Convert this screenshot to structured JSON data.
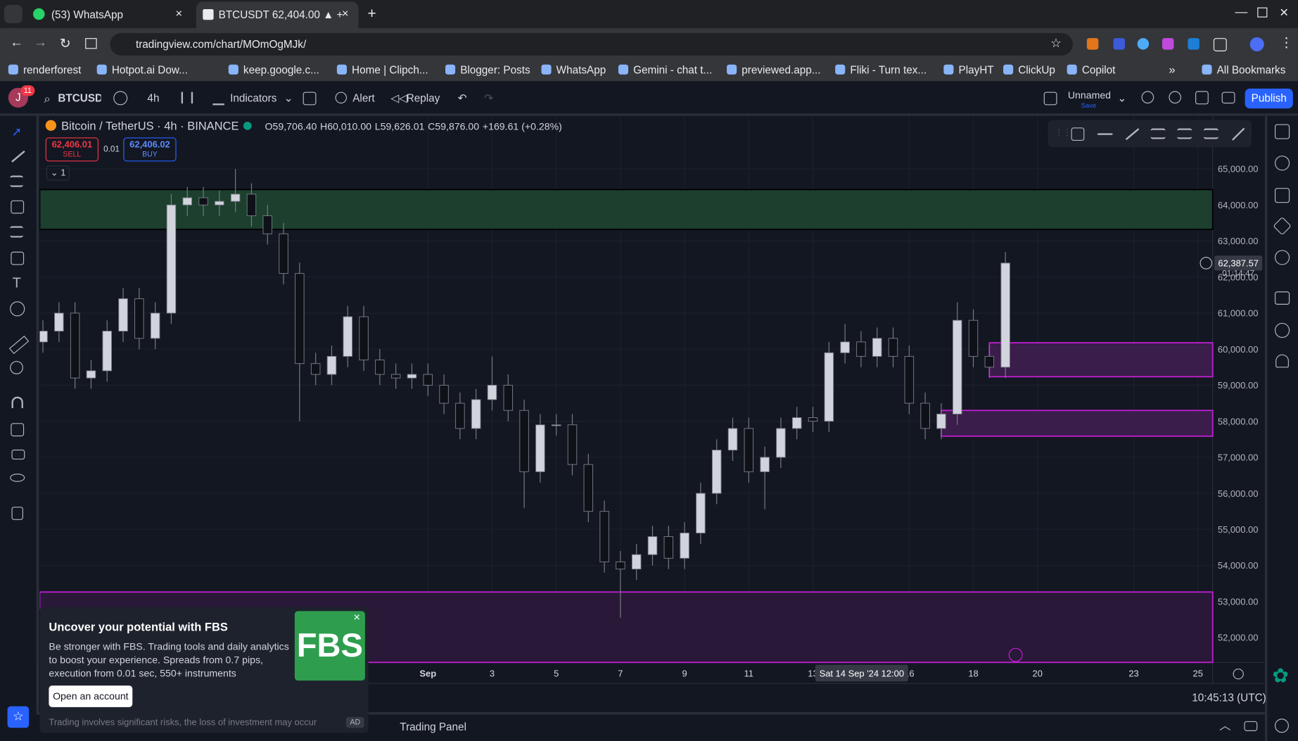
{
  "browser": {
    "tabs": [
      "(53) WhatsApp",
      "BTCUSDT 62,404.00 ▲ +"
    ],
    "url": "tradingview.com/chart/MOmOgMJk/",
    "bookmarks": [
      "renderforest",
      "Hotpot.ai Dow...",
      "keep.google.c...",
      "Home | Clipch...",
      "Blogger: Posts",
      "WhatsApp",
      "Gemini - chat t...",
      "previewed.app...",
      "Fliki - Turn tex...",
      "PlayHT",
      "ClickUp",
      "Copilot"
    ],
    "all_bookmarks": "All Bookmarks"
  },
  "toolbar": {
    "avatar": "J",
    "badge": "11",
    "symbol": "BTCUSDT",
    "interval": "4h",
    "indicators": "Indicators",
    "alert": "Alert",
    "replay": "Replay",
    "layout_name": "Unnamed",
    "save": "Save",
    "publish": "Publish"
  },
  "order_panel": {
    "sell_price": "62,406.01",
    "sell": "SELL",
    "quantity": "0.01",
    "buy_price": "62,406.02",
    "buy": "BUY",
    "indicator_count": "1"
  },
  "chart_data": {
    "type": "candlestick",
    "title": "Bitcoin / TetherUS · 4h · BINANCE",
    "ohlc_labels": [
      "O59,706.40",
      "H60,010.00",
      "L59,626.01",
      "C59,876.00",
      "+169.61 (+0.28%)"
    ],
    "xlim": [
      -11.1,
      25.46
    ],
    "ylim": [
      51311,
      66470
    ],
    "xticks": [
      {
        "value": 1,
        "label": "Sep"
      },
      3,
      5,
      7,
      9,
      11,
      13,
      16,
      18,
      20,
      23,
      25
    ],
    "yticks": [
      {
        "value": 52000,
        "label": "52,000.00"
      },
      {
        "value": 53000,
        "label": "53,000.00"
      },
      {
        "value": 54000,
        "label": "54,000.00"
      },
      {
        "value": 55000,
        "label": "55,000.00"
      },
      {
        "value": 56000,
        "label": "56,000.00"
      },
      {
        "value": 57000,
        "label": "57,000.00"
      },
      {
        "value": 58000,
        "label": "58,000.00"
      },
      {
        "value": 59000,
        "label": "59,000.00"
      },
      {
        "value": 60000,
        "label": "60,000.00"
      },
      {
        "value": 61000,
        "label": "61,000.00"
      },
      {
        "value": 62000,
        "label": "62,000.00"
      },
      {
        "value": 63000,
        "label": "63,000.00"
      },
      {
        "value": 64000,
        "label": "64,000.00"
      },
      {
        "value": 65000,
        "label": "65,000.00"
      }
    ],
    "grid": true,
    "candles": {
      "up_color": "#d1d4dc",
      "down_color": "#0f1118",
      "border_color": "#787b86",
      "x": [
        -11,
        -10.5,
        -10,
        -9.5,
        -9,
        -8.5,
        -8,
        -7.5,
        -7,
        -6.5,
        -6,
        -5.5,
        -5,
        -4.5,
        -4,
        -3.5,
        -3,
        -2.5,
        -2,
        -1.5,
        -1,
        -0.5,
        0,
        0.5,
        1,
        1.5,
        2,
        2.5,
        3,
        3.5,
        4,
        4.5,
        5,
        5.5,
        6,
        6.5,
        7,
        7.5,
        8,
        8.5,
        9,
        9.5,
        10,
        10.5,
        11,
        11.5,
        12,
        12.5,
        13,
        13.5,
        14,
        14.5,
        15,
        15.5,
        16,
        16.5,
        17,
        17.5,
        18,
        18.5,
        19
      ],
      "open": [
        60200,
        60500,
        61000,
        59200,
        59400,
        60500,
        61400,
        60300,
        61000,
        64000,
        64200,
        64000,
        64100,
        64300,
        63700,
        63200,
        62100,
        59600,
        59300,
        59800,
        60900,
        59700,
        59300,
        59200,
        59300,
        59000,
        58500,
        57800,
        58600,
        59000,
        58300,
        56600,
        57900,
        57900,
        56800,
        55500,
        54100,
        53900,
        54300,
        54800,
        54200,
        54900,
        56000,
        57200,
        57800,
        56600,
        57000,
        57800,
        58100,
        58000,
        59900,
        60200,
        59800,
        60300,
        59800,
        58500,
        57800,
        58200,
        60800,
        59800,
        59500
      ],
      "high": [
        60800,
        61300,
        61300,
        59700,
        60800,
        61700,
        61700,
        61300,
        64300,
        64500,
        64500,
        64400,
        65000,
        64600,
        64000,
        63500,
        62400,
        59900,
        60100,
        61200,
        61200,
        60000,
        59600,
        59600,
        59600,
        59300,
        58800,
        58900,
        59800,
        59300,
        58600,
        58200,
        58200,
        58200,
        57100,
        55800,
        54400,
        54600,
        55100,
        55100,
        55200,
        56300,
        57500,
        58100,
        58100,
        57300,
        58100,
        58400,
        58400,
        60200,
        60700,
        60500,
        60600,
        60600,
        60100,
        58800,
        58500,
        61300,
        61100,
        60100,
        62700
      ],
      "low": [
        59900,
        60200,
        58900,
        58900,
        59100,
        60200,
        60000,
        60000,
        60700,
        63700,
        63700,
        63700,
        63800,
        63400,
        62900,
        61800,
        58000,
        59000,
        59000,
        59500,
        59400,
        59000,
        58900,
        58900,
        58700,
        58200,
        57500,
        57500,
        58300,
        58000,
        55600,
        56300,
        57600,
        56500,
        55200,
        53800,
        52550,
        53600,
        54000,
        53900,
        53900,
        54600,
        55700,
        56900,
        56300,
        55560,
        56700,
        57500,
        57700,
        57700,
        59600,
        59500,
        59500,
        59500,
        58200,
        57500,
        57500,
        57900,
        59500,
        59200,
        59200
      ],
      "close": [
        60500,
        61000,
        59200,
        59400,
        60500,
        61400,
        60300,
        61000,
        64000,
        64200,
        64000,
        64100,
        64300,
        63700,
        63200,
        62100,
        59600,
        59300,
        59800,
        60900,
        59700,
        59300,
        59200,
        59300,
        59000,
        58500,
        57800,
        58600,
        59000,
        58300,
        56600,
        57900,
        57900,
        56800,
        55500,
        54100,
        53900,
        54300,
        54800,
        54200,
        54900,
        56000,
        57200,
        57800,
        56600,
        57000,
        57800,
        58100,
        58000,
        59900,
        60200,
        59800,
        60300,
        59800,
        58500,
        57800,
        58200,
        60800,
        59800,
        59500,
        62387.57
      ]
    },
    "zones": [
      {
        "from": 63323,
        "to": 64426,
        "x_start": -11.1,
        "fill": "#1c3f2e",
        "border": "#000000"
      },
      {
        "from": 59235,
        "to": 60177,
        "x_start": 18.5,
        "fill": "#3a1d4a",
        "border": "#c21fd6"
      },
      {
        "from": 57586,
        "to": 58300,
        "x_start": 17,
        "fill": "#3a1d4a",
        "border": "#c21fd6"
      },
      {
        "from": 51311,
        "to": 53263,
        "x_start": -11.1,
        "fill": "#2a1838",
        "border": "#c21fd6"
      }
    ],
    "last_price": {
      "value": 62387.57,
      "label": "62,387.57"
    },
    "countdown": "01:14:47",
    "crosshair_label": "Sat 14 Sep '24  12:00",
    "clock": "10:45:13 (UTC)"
  },
  "ad": {
    "title": "Uncover your potential with FBS",
    "body": "Be stronger with FBS. Trading tools and daily analytics to boost your experience. Spreads from 0.7 pips, execution from 0.01 sec, 550+ instruments",
    "button": "Open an account",
    "logo": "FBS",
    "disclaimer": "Trading involves significant risks, the loss of investment may occur",
    "badge": "AD"
  },
  "bottom_panel": {
    "tab": "Trading Panel"
  }
}
